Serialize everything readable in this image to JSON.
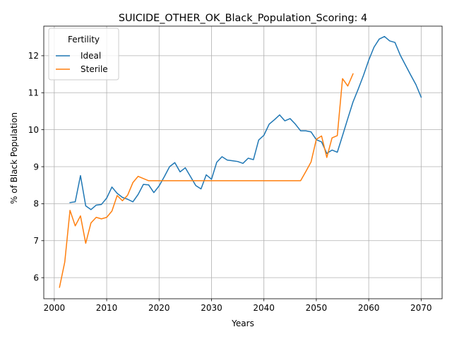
{
  "chart_data": {
    "type": "line",
    "title": "SUICIDE_OTHER_OK_Black_Population_Scoring: 4",
    "xlabel": "Years",
    "ylabel": "% of Black Population",
    "xlim": [
      1998,
      2074
    ],
    "ylim": [
      5.43,
      12.8
    ],
    "xticks": [
      2000,
      2010,
      2020,
      2030,
      2040,
      2050,
      2060,
      2070
    ],
    "yticks": [
      6,
      7,
      8,
      9,
      10,
      11,
      12
    ],
    "grid": true,
    "legend": {
      "title": "Fertility",
      "placement": "top-left"
    },
    "series": [
      {
        "name": "Ideal",
        "color": "#1f77b4",
        "x": [
          2003,
          2004,
          2005,
          2006,
          2007,
          2008,
          2009,
          2010,
          2011,
          2012,
          2013,
          2014,
          2015,
          2016,
          2017,
          2018,
          2019,
          2020,
          2021,
          2022,
          2023,
          2024,
          2025,
          2026,
          2027,
          2028,
          2029,
          2030,
          2031,
          2032,
          2033,
          2034,
          2035,
          2036,
          2037,
          2038,
          2039,
          2040,
          2041,
          2042,
          2043,
          2044,
          2045,
          2046,
          2047,
          2048,
          2049,
          2050,
          2051,
          2052,
          2053,
          2054,
          2055,
          2056,
          2057,
          2058,
          2059,
          2060,
          2061,
          2062,
          2063,
          2064,
          2065,
          2066,
          2067,
          2068,
          2069,
          2070
        ],
        "y": [
          8.03,
          8.05,
          8.76,
          7.94,
          7.84,
          7.96,
          7.98,
          8.15,
          8.45,
          8.28,
          8.17,
          8.12,
          8.05,
          8.25,
          8.52,
          8.51,
          8.3,
          8.48,
          8.73,
          9.0,
          9.11,
          8.86,
          8.97,
          8.73,
          8.49,
          8.4,
          8.78,
          8.66,
          9.12,
          9.27,
          9.18,
          9.16,
          9.14,
          9.09,
          9.23,
          9.19,
          9.72,
          9.85,
          10.15,
          10.27,
          10.4,
          10.24,
          10.3,
          10.15,
          9.97,
          9.97,
          9.94,
          9.73,
          9.67,
          9.36,
          9.45,
          9.39,
          9.84,
          10.3,
          10.75,
          11.1,
          11.47,
          11.88,
          12.23,
          12.45,
          12.52,
          12.4,
          12.36,
          12.02,
          11.75,
          11.48,
          11.22,
          10.88
        ]
      },
      {
        "name": "Sterile",
        "color": "#ff7f0e",
        "x": [
          2001,
          2002,
          2003,
          2004,
          2005,
          2006,
          2007,
          2008,
          2009,
          2010,
          2011,
          2012,
          2013,
          2014,
          2015,
          2016,
          2017,
          2018,
          2019,
          2020,
          2021,
          2022,
          2023,
          2024,
          2025,
          2026,
          2027,
          2028,
          2029,
          2030,
          2031,
          2032,
          2033,
          2034,
          2035,
          2036,
          2037,
          2038,
          2039,
          2040,
          2041,
          2042,
          2043,
          2044,
          2045,
          2046,
          2047,
          2048,
          2049,
          2050,
          2051,
          2052,
          2053,
          2054,
          2055,
          2056,
          2057
        ],
        "y": [
          5.74,
          6.42,
          7.82,
          7.4,
          7.67,
          6.93,
          7.48,
          7.63,
          7.59,
          7.63,
          7.8,
          8.22,
          8.08,
          8.23,
          8.57,
          8.74,
          8.68,
          8.62,
          8.62,
          8.62,
          8.62,
          8.62,
          8.62,
          8.62,
          8.62,
          8.62,
          8.62,
          8.62,
          8.62,
          8.62,
          8.62,
          8.62,
          8.62,
          8.62,
          8.62,
          8.62,
          8.62,
          8.62,
          8.62,
          8.62,
          8.62,
          8.62,
          8.62,
          8.62,
          8.62,
          8.62,
          8.62,
          8.87,
          9.13,
          9.74,
          9.83,
          9.25,
          9.78,
          9.84,
          11.38,
          11.18,
          11.51
        ]
      }
    ]
  }
}
